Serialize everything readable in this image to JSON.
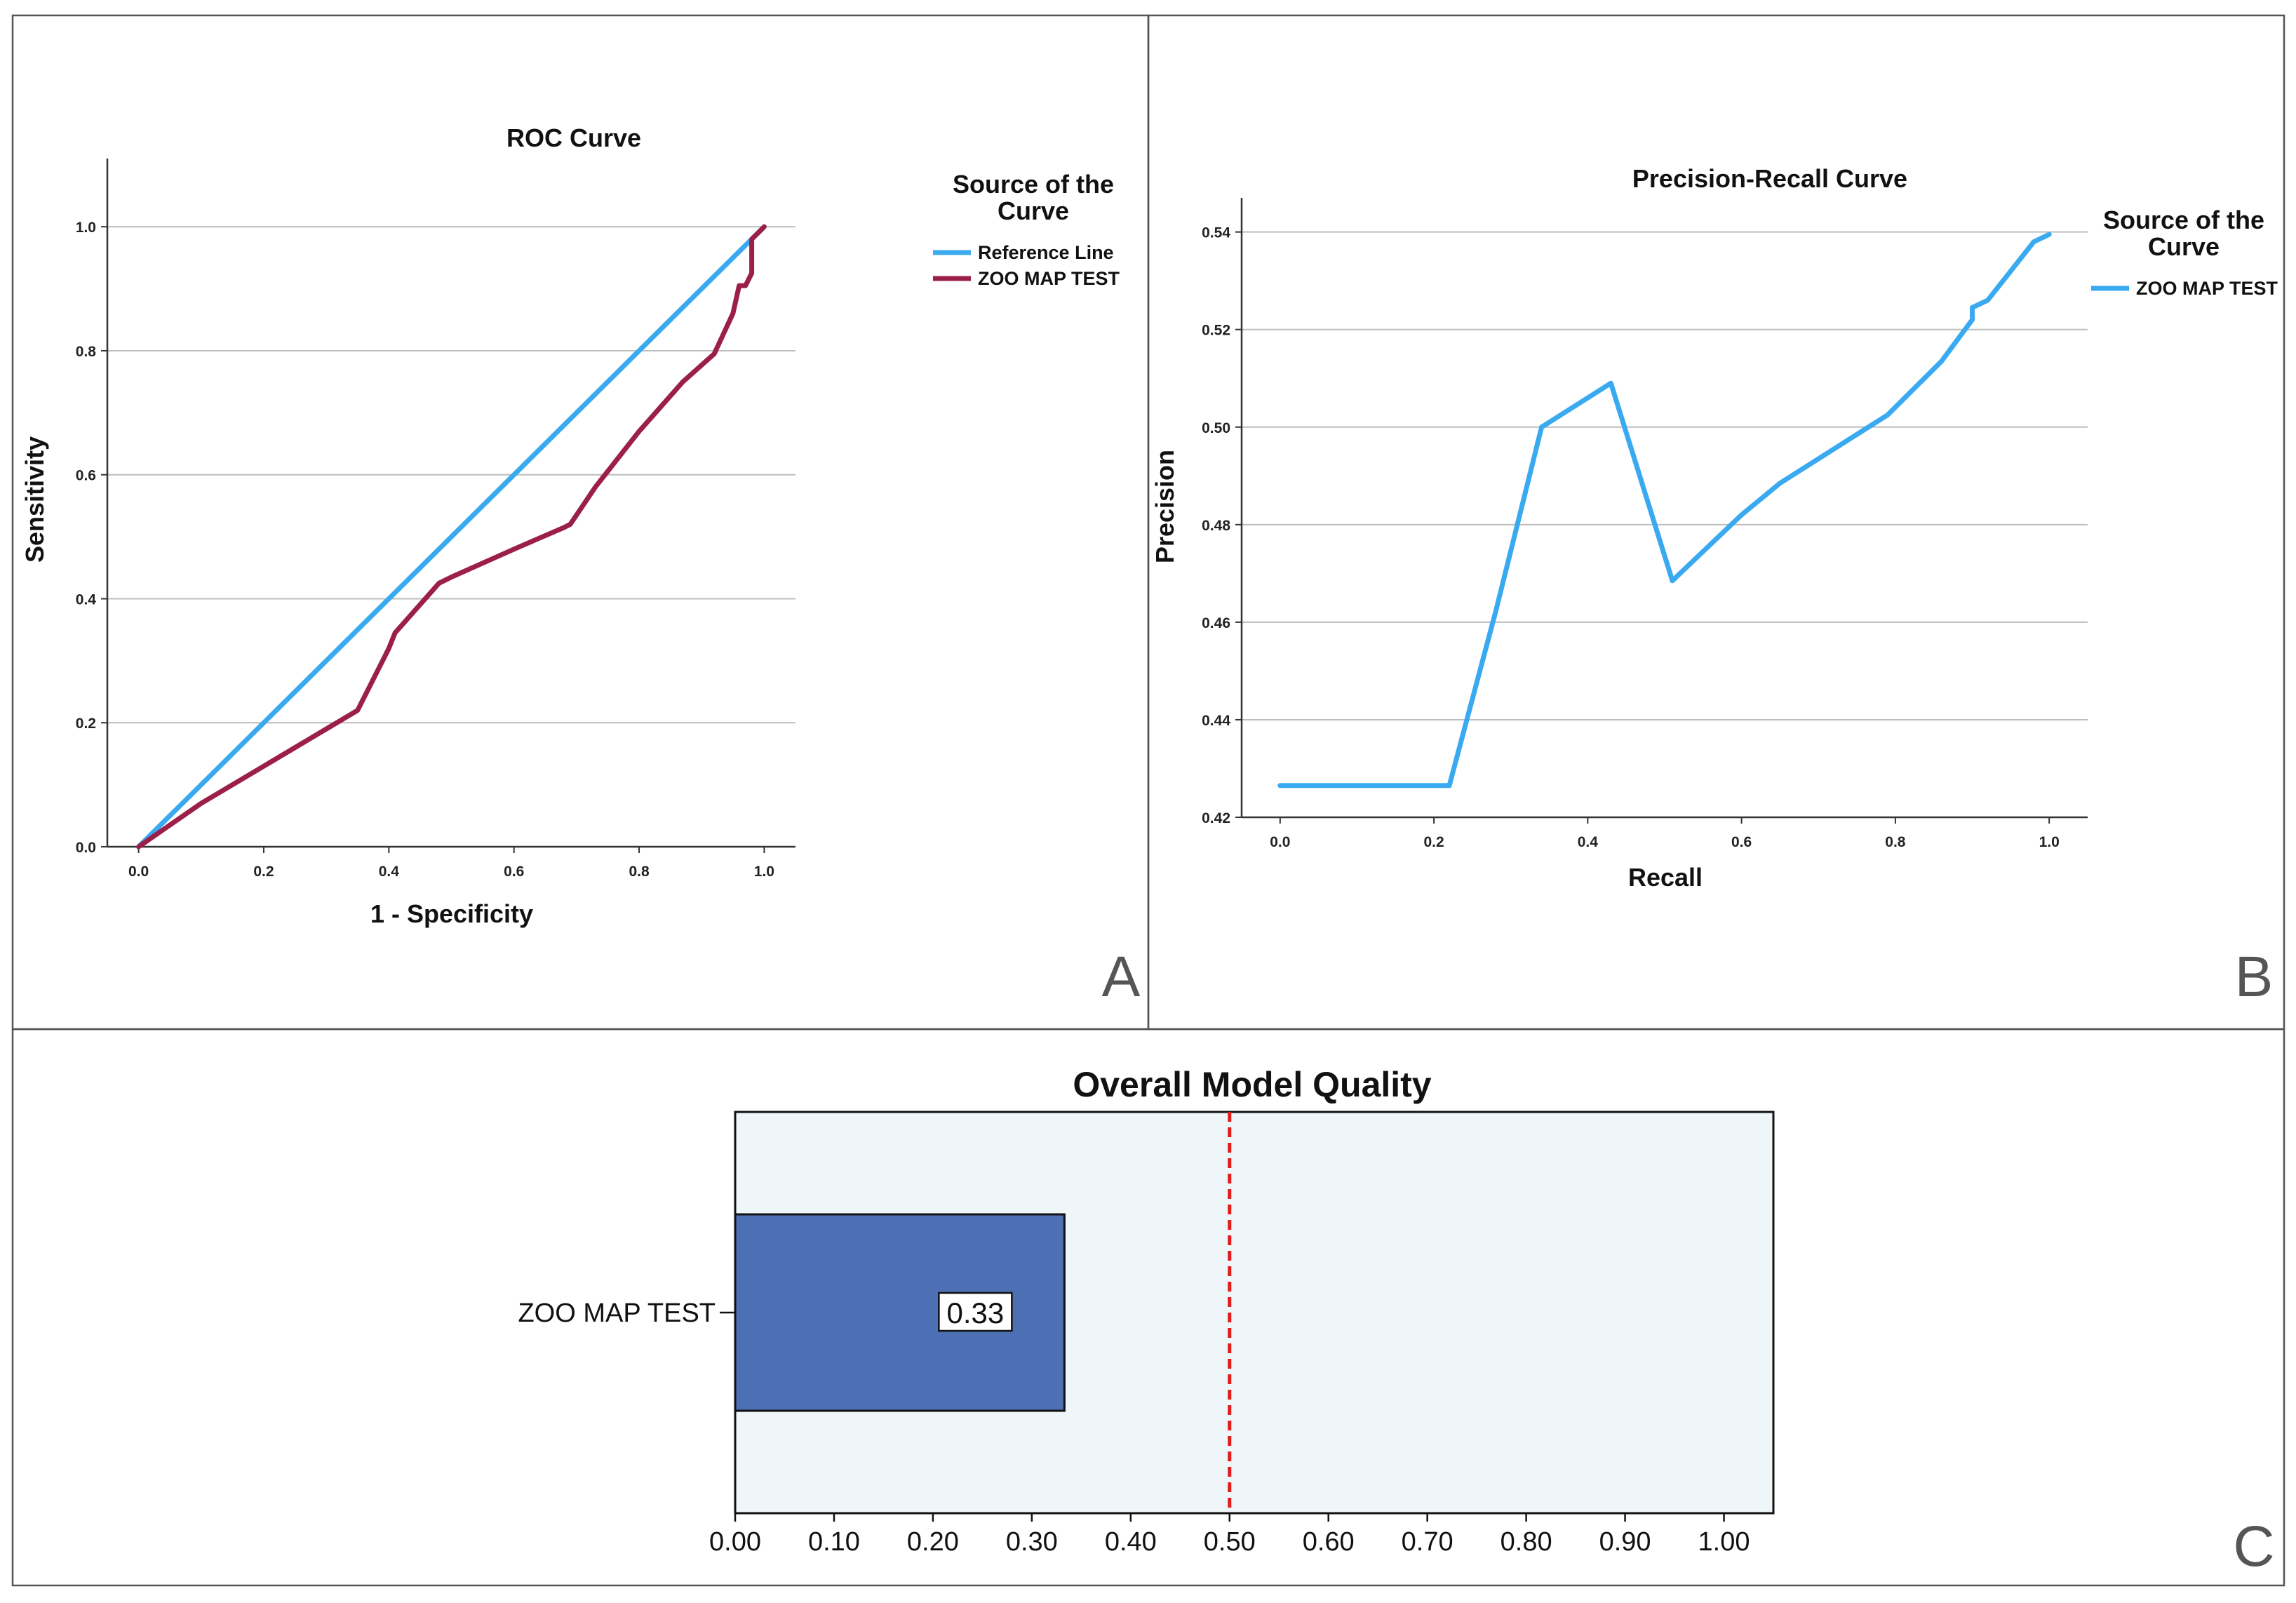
{
  "panels": [
    {
      "letter": "A"
    },
    {
      "letter": "B"
    },
    {
      "letter": "C"
    }
  ],
  "colors": {
    "reference_line": "#3aaaf0",
    "roc_curve": "#9c1f4a",
    "pr_curve": "#3aaaf0",
    "bar_fill": "#4d6fb3",
    "bar_background": "#eff6fa",
    "threshold_line": "#e31b1b"
  },
  "chart_data": [
    {
      "type": "line",
      "title": "ROC Curve",
      "xlabel": "1 - Specificity",
      "ylabel": "Sensitivity",
      "xlim": [
        -0.05,
        1.05
      ],
      "ylim": [
        0,
        1.11
      ],
      "xticks": [
        "0.0",
        "0.2",
        "0.4",
        "0.6",
        "0.8",
        "1.0"
      ],
      "yticks": [
        "0.0",
        "0.2",
        "0.4",
        "0.6",
        "0.8",
        "1.0"
      ],
      "grid": "horizontal",
      "legend": {
        "title": "Source of the Curve",
        "title_lines": [
          "Source of the",
          "Curve"
        ],
        "placement": "right",
        "entries": [
          "Reference Line",
          "ZOO MAP TEST"
        ]
      },
      "series": [
        {
          "name": "Reference Line",
          "x": [
            0,
            1
          ],
          "y": [
            0,
            1
          ]
        },
        {
          "name": "ZOO MAP TEST",
          "x": [
            0,
            0.1,
            0.2,
            0.35,
            0.39,
            0.4,
            0.41,
            0.48,
            0.5,
            0.6,
            0.68,
            0.69,
            0.73,
            0.8,
            0.87,
            0.92,
            0.95,
            0.96,
            0.97,
            0.98,
            0.98,
            0.99,
            1.0
          ],
          "y": [
            0,
            0.07,
            0.13,
            0.22,
            0.3,
            0.32,
            0.345,
            0.425,
            0.435,
            0.48,
            0.515,
            0.52,
            0.58,
            0.67,
            0.75,
            0.795,
            0.86,
            0.905,
            0.905,
            0.925,
            0.98,
            0.99,
            1.0
          ]
        }
      ]
    },
    {
      "type": "line",
      "title": "Precision-Recall Curve",
      "xlabel": "Recall",
      "ylabel": "Precision",
      "xlim": [
        -0.05,
        1.05
      ],
      "ylim": [
        0.42,
        0.547
      ],
      "xticks": [
        "0.0",
        "0.2",
        "0.4",
        "0.6",
        "0.8",
        "1.0"
      ],
      "yticks": [
        "0.42",
        "0.44",
        "0.46",
        "0.48",
        "0.50",
        "0.52",
        "0.54"
      ],
      "grid": "horizontal",
      "legend": {
        "title": "Source of the Curve",
        "title_lines": [
          "Source of the",
          "Curve"
        ],
        "placement": "right",
        "entries": [
          "ZOO MAP TEST"
        ]
      },
      "series": [
        {
          "name": "ZOO MAP TEST",
          "x": [
            0,
            0.22,
            0.28,
            0.34,
            0.43,
            0.51,
            0.6,
            0.65,
            0.79,
            0.86,
            0.9,
            0.9,
            0.92,
            0.98,
            1.0
          ],
          "y": [
            0.4265,
            0.4265,
            0.462,
            0.5,
            0.509,
            0.4685,
            0.482,
            0.4885,
            0.5025,
            0.5135,
            0.522,
            0.5245,
            0.526,
            0.538,
            0.5395
          ]
        }
      ]
    },
    {
      "type": "bar",
      "orientation": "horizontal",
      "title": "Overall Model Quality",
      "xlabel": "",
      "ylabel": "",
      "xlim": [
        0,
        1.05
      ],
      "xticks": [
        "0.00",
        "0.10",
        "0.20",
        "0.30",
        "0.40",
        "0.50",
        "0.60",
        "0.70",
        "0.80",
        "0.90",
        "1.00"
      ],
      "categories": [
        "ZOO MAP TEST"
      ],
      "values": [
        0.333
      ],
      "data_labels": [
        "0.33"
      ],
      "reference_line": 0.5
    }
  ]
}
